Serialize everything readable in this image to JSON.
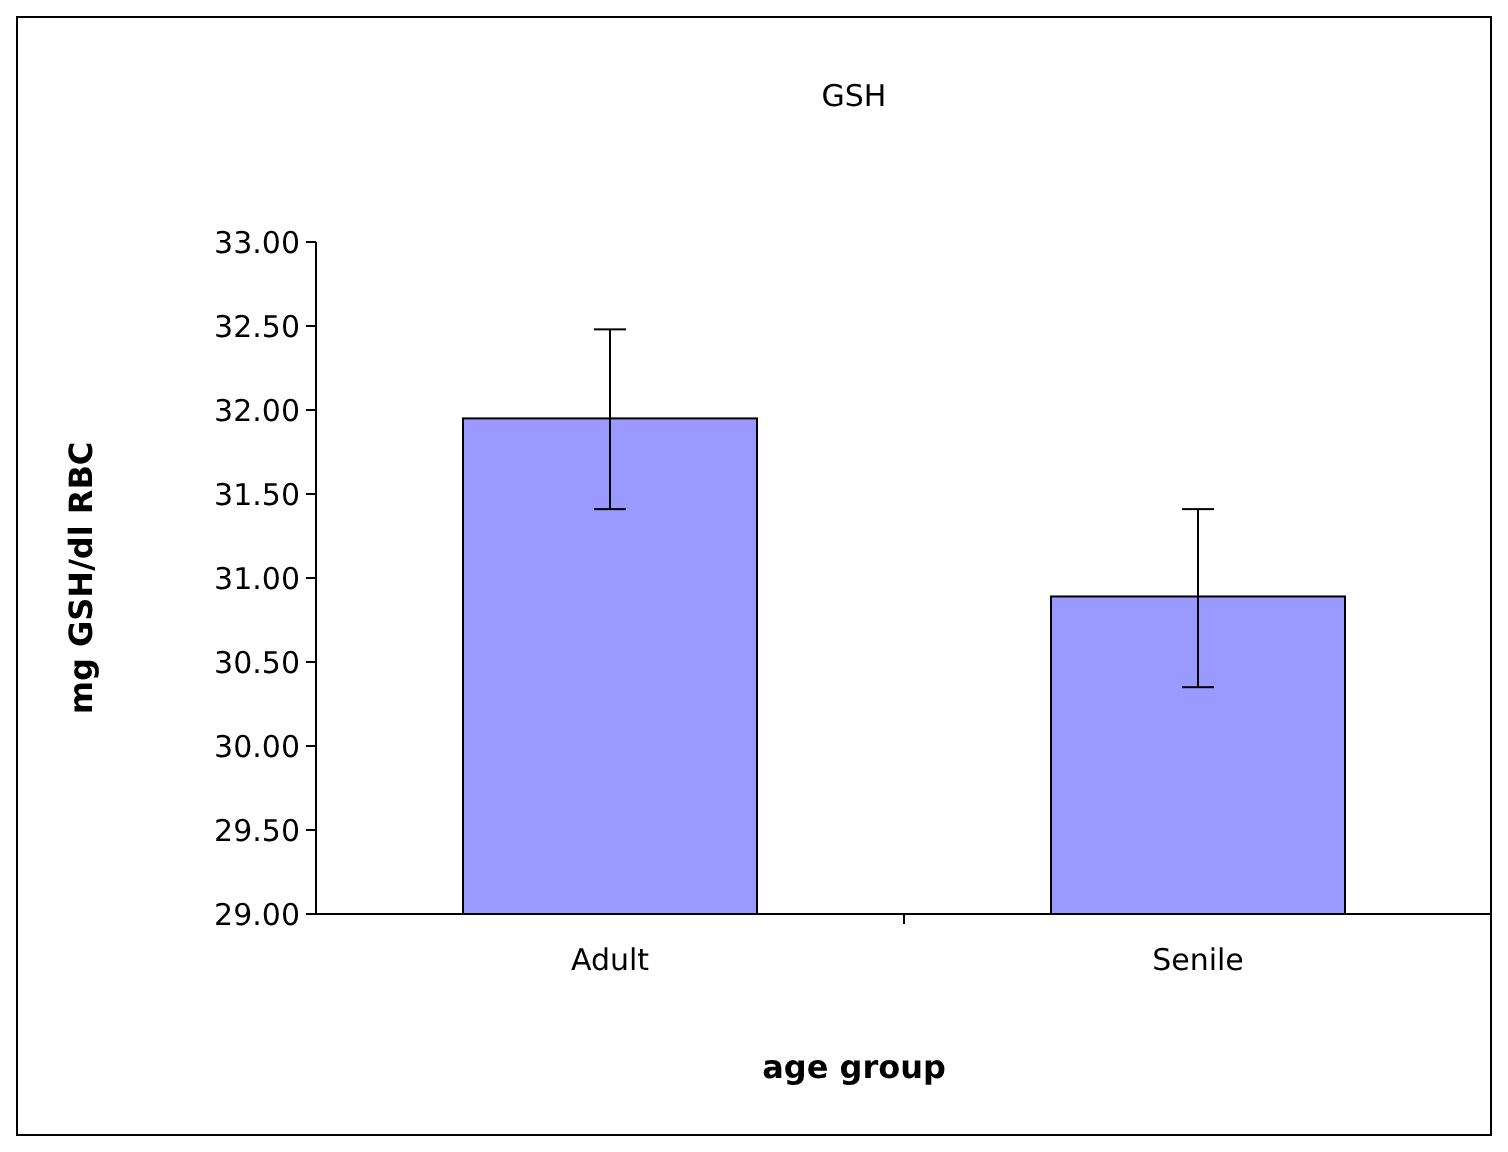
{
  "chart_data": {
    "type": "bar",
    "title": "GSH",
    "xlabel": "age group",
    "ylabel": "mg GSH/dl RBC",
    "categories": [
      "Adult",
      "Senile"
    ],
    "values": [
      31.95,
      30.89
    ],
    "errors": [
      [
        31.41,
        32.48
      ],
      [
        30.35,
        31.41
      ]
    ],
    "color": "#9999ff",
    "ylim": [
      29,
      33
    ],
    "yticks": [
      {
        "value": 29,
        "label": "29.00"
      },
      {
        "value": 29.5,
        "label": "29.50"
      },
      {
        "value": 30,
        "label": "30.00"
      },
      {
        "value": 30.5,
        "label": "30.50"
      },
      {
        "value": 31,
        "label": "31.00"
      },
      {
        "value": 31.5,
        "label": "31.50"
      },
      {
        "value": 32,
        "label": "32.00"
      },
      {
        "value": 32.5,
        "label": "32.50"
      },
      {
        "value": 33,
        "label": "33.00"
      }
    ],
    "grid": false
  }
}
